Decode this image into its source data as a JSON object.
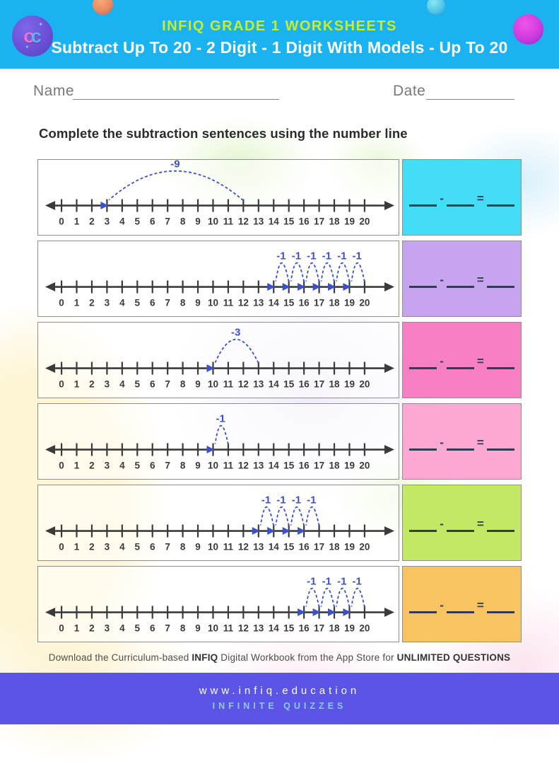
{
  "header": {
    "bg_color": "#1ab2f0",
    "brand": "INFIQ GRADE 1 WORKSHEETS",
    "brand_color": "#c8ed2a",
    "title": "Subtract Up To 20 - 2 Digit - 1 Digit With Models - Up To 20",
    "logo": {
      "letter_o": "o",
      "letter_c": "c",
      "sparkle": "✦"
    }
  },
  "fields": {
    "name_label": "Name",
    "date_label": "Date"
  },
  "instruction": "Complete the subtraction sentences using the number line",
  "number_line": {
    "min": 0,
    "max": 20,
    "tick_labels": [
      "0",
      "1",
      "2",
      "3",
      "4",
      "5",
      "6",
      "7",
      "8",
      "9",
      "10",
      "11",
      "12",
      "13",
      "14",
      "15",
      "16",
      "17",
      "18",
      "19",
      "20"
    ],
    "line_color": "#3b3b3b",
    "arc_color": "#3c50cc"
  },
  "equation": {
    "minus": "-",
    "equals": "="
  },
  "problems": [
    {
      "box_color": "#45dcf5",
      "arcs": [
        {
          "from": 12,
          "to": 3,
          "label": "-9"
        }
      ]
    },
    {
      "box_color": "#c9a4ee",
      "arcs": [
        {
          "from": 20,
          "to": 19,
          "label": "-1"
        },
        {
          "from": 19,
          "to": 18,
          "label": "-1"
        },
        {
          "from": 18,
          "to": 17,
          "label": "-1"
        },
        {
          "from": 17,
          "to": 16,
          "label": "-1"
        },
        {
          "from": 16,
          "to": 15,
          "label": "-1"
        },
        {
          "from": 15,
          "to": 14,
          "label": "-1"
        }
      ]
    },
    {
      "box_color": "#f97fc5",
      "arcs": [
        {
          "from": 13,
          "to": 10,
          "label": "-3"
        }
      ]
    },
    {
      "box_color": "#fba9d2",
      "arcs": [
        {
          "from": 11,
          "to": 10,
          "label": "-1"
        }
      ]
    },
    {
      "box_color": "#c3e865",
      "arcs": [
        {
          "from": 17,
          "to": 16,
          "label": "-1"
        },
        {
          "from": 16,
          "to": 15,
          "label": "-1"
        },
        {
          "from": 15,
          "to": 14,
          "label": "-1"
        },
        {
          "from": 14,
          "to": 13,
          "label": "-1"
        }
      ]
    },
    {
      "box_color": "#f8c360",
      "arcs": [
        {
          "from": 20,
          "to": 19,
          "label": "-1"
        },
        {
          "from": 19,
          "to": 18,
          "label": "-1"
        },
        {
          "from": 18,
          "to": 17,
          "label": "-1"
        },
        {
          "from": 17,
          "to": 16,
          "label": "-1"
        }
      ]
    }
  ],
  "footer": {
    "note_segments": [
      {
        "text": "Download the Curriculum-based "
      },
      {
        "text": "INFIQ"
      },
      {
        "text": " Digital Workbook from the App Store for "
      },
      {
        "text": "UNLIMITED QUESTIONS"
      }
    ],
    "website": "www.infiq.education",
    "tagline": "INFINITE QUIZZES",
    "bar_color": "#5b54e4",
    "tagline_color": "#8fc9ee"
  }
}
